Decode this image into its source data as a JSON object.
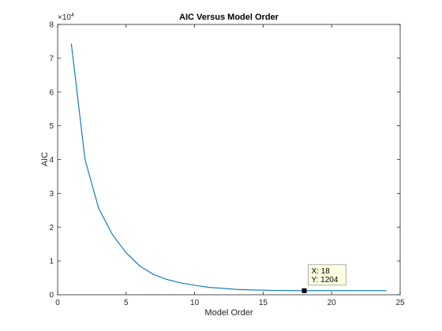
{
  "chart_data": {
    "type": "line",
    "title": "AIC Versus Model Order",
    "xlabel": "Model Order",
    "ylabel": "AIC",
    "xlim": [
      0,
      25
    ],
    "ylim": [
      0,
      8
    ],
    "y_scale_exponent": "×10",
    "y_scale_power": "4",
    "xticks": [
      0,
      5,
      10,
      15,
      20,
      25
    ],
    "yticks": [
      0,
      1,
      2,
      3,
      4,
      5,
      6,
      7,
      8
    ],
    "grid": false,
    "line_color": "#0072BD",
    "series": [
      {
        "x": [
          1,
          2,
          3,
          4,
          5,
          6,
          7,
          8,
          9,
          10,
          11,
          12,
          13,
          14,
          15,
          16,
          17,
          18,
          19,
          20,
          21,
          22,
          23,
          24
        ],
        "values": [
          7.43,
          4.0,
          2.55,
          1.78,
          1.24,
          0.85,
          0.6,
          0.45,
          0.35,
          0.28,
          0.22,
          0.19,
          0.16,
          0.145,
          0.135,
          0.128,
          0.123,
          0.1204,
          0.12,
          0.12,
          0.12,
          0.121,
          0.121,
          0.122
        ]
      }
    ],
    "datatip": {
      "x": 18,
      "y": 0.1204,
      "line1": "X: 18",
      "line2": "Y: 1204"
    }
  }
}
